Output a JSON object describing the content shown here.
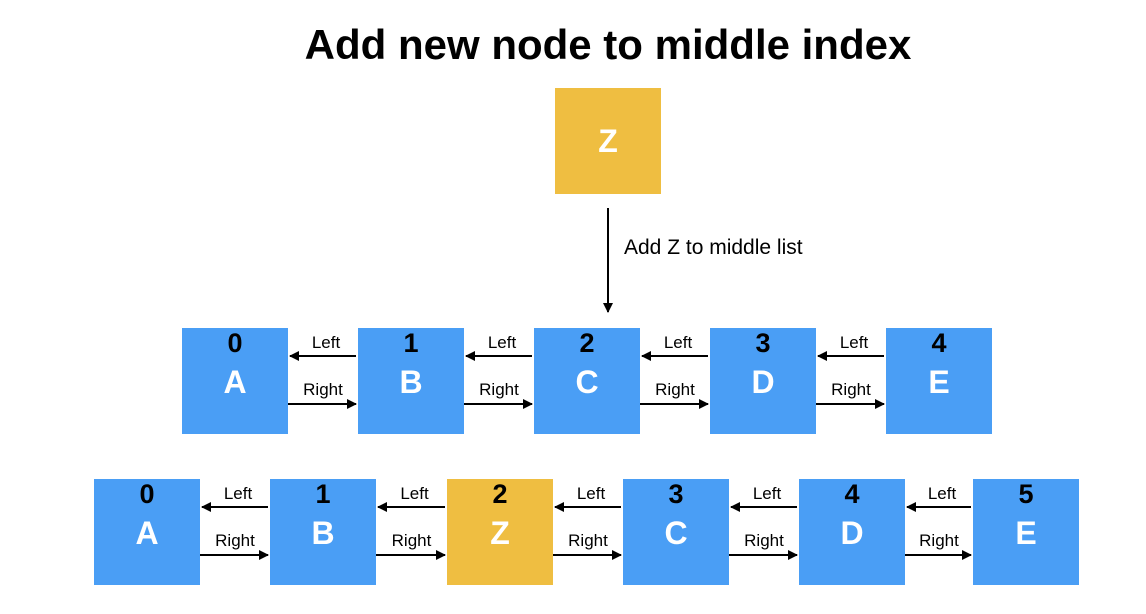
{
  "title": "Add new node to middle index",
  "new_node": {
    "value": "Z",
    "color": "#EFBE41"
  },
  "insert_label": "Add Z to middle list",
  "colors": {
    "node": "#4A9EF5",
    "inserted": "#EFBE41",
    "line": "#000000"
  },
  "link_labels": {
    "left": "Left",
    "right": "Right"
  },
  "before_list": [
    {
      "index": "0",
      "value": "A",
      "inserted": false
    },
    {
      "index": "1",
      "value": "B",
      "inserted": false
    },
    {
      "index": "2",
      "value": "C",
      "inserted": false
    },
    {
      "index": "3",
      "value": "D",
      "inserted": false
    },
    {
      "index": "4",
      "value": "E",
      "inserted": false
    }
  ],
  "after_list": [
    {
      "index": "0",
      "value": "A",
      "inserted": false
    },
    {
      "index": "1",
      "value": "B",
      "inserted": false
    },
    {
      "index": "2",
      "value": "Z",
      "inserted": true
    },
    {
      "index": "3",
      "value": "C",
      "inserted": false
    },
    {
      "index": "4",
      "value": "D",
      "inserted": false
    },
    {
      "index": "5",
      "value": "E",
      "inserted": false
    }
  ]
}
